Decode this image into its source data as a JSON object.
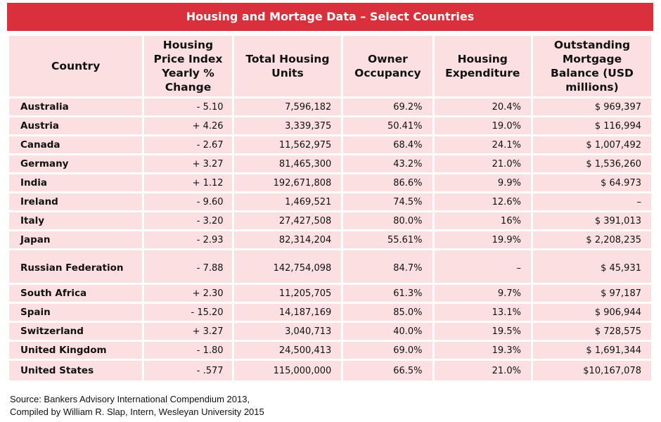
{
  "title": "Housing and Mortage Data – Select Countries",
  "headers": {
    "country": "Country",
    "hpi": "Housing Price Index Yearly % Change",
    "units": "Total Housing Units",
    "owner": "Owner Occupancy",
    "expend": "Housing Expenditure",
    "mortgage": "Outstanding Mortgage Balance (USD millions)"
  },
  "rows": [
    {
      "country": "Australia",
      "hpi": "- 5.10",
      "units": "7,596,182",
      "owner": "69.2%",
      "expend": "20.4%",
      "mortgage": "$ 969,397"
    },
    {
      "country": "Austria",
      "hpi": "+ 4.26",
      "units": "3,339,375",
      "owner": "50.41%",
      "expend": "19.0%",
      "mortgage": "$ 116,994"
    },
    {
      "country": "Canada",
      "hpi": "- 2.67",
      "units": "11,562,975",
      "owner": "68.4%",
      "expend": "24.1%",
      "mortgage": "$ 1,007,492"
    },
    {
      "country": "Germany",
      "hpi": "+ 3.27",
      "units": "81,465,300",
      "owner": "43.2%",
      "expend": "21.0%",
      "mortgage": "$ 1,536,260"
    },
    {
      "country": "India",
      "hpi": "+ 1.12",
      "units": "192,671,808",
      "owner": "86.6%",
      "expend": "9.9%",
      "mortgage": "$ 64.973"
    },
    {
      "country": "Ireland",
      "hpi": "- 9.60",
      "units": "1,469,521",
      "owner": "74.5%",
      "expend": "12.6%",
      "mortgage": "–"
    },
    {
      "country": "Italy",
      "hpi": "- 3.20",
      "units": "27,427,508",
      "owner": "80.0%",
      "expend": "16%",
      "mortgage": "$ 391,013"
    },
    {
      "country": "Japan",
      "hpi": "- 2.93",
      "units": "82,314,204",
      "owner": "55.61%",
      "expend": "19.9%",
      "mortgage": "$ 2,208,235"
    },
    {
      "country": "Russian Federation",
      "hpi": "- 7.88",
      "units": "142,754,098",
      "owner": "84.7%",
      "expend": "–",
      "mortgage": "$ 45,931"
    },
    {
      "country": "South Africa",
      "hpi": "+ 2.30",
      "units": "11,205,705",
      "owner": "61.3%",
      "expend": "9.7%",
      "mortgage": "$ 97,187"
    },
    {
      "country": "Spain",
      "hpi": "- 15.20",
      "units": "14,187,169",
      "owner": "85.0%",
      "expend": "13.1%",
      "mortgage": "$ 906,944"
    },
    {
      "country": "Switzerland",
      "hpi": "+ 3.27",
      "units": "3,040,713",
      "owner": "40.0%",
      "expend": "19.5%",
      "mortgage": "$ 728,575"
    },
    {
      "country": "United Kingdom",
      "hpi": "- 1.80",
      "units": "24,500,413",
      "owner": "69.0%",
      "expend": "19.3%",
      "mortgage": "$ 1,691,344"
    },
    {
      "country": "United States",
      "hpi": "- .577",
      "units": "115,000,000",
      "owner": "66.5%",
      "expend": "21.0%",
      "mortgage": "$10,167,078"
    }
  ],
  "source": {
    "line1": "Source: Bankers Advisory International Compendium 2013,",
    "line2": "Compiled by William R. Slap, Intern, Wesleyan University 2015"
  },
  "colors": {
    "title_bg": "#d9303c",
    "cell_bg": "#fbdfe1",
    "title_text": "#ffffff"
  }
}
